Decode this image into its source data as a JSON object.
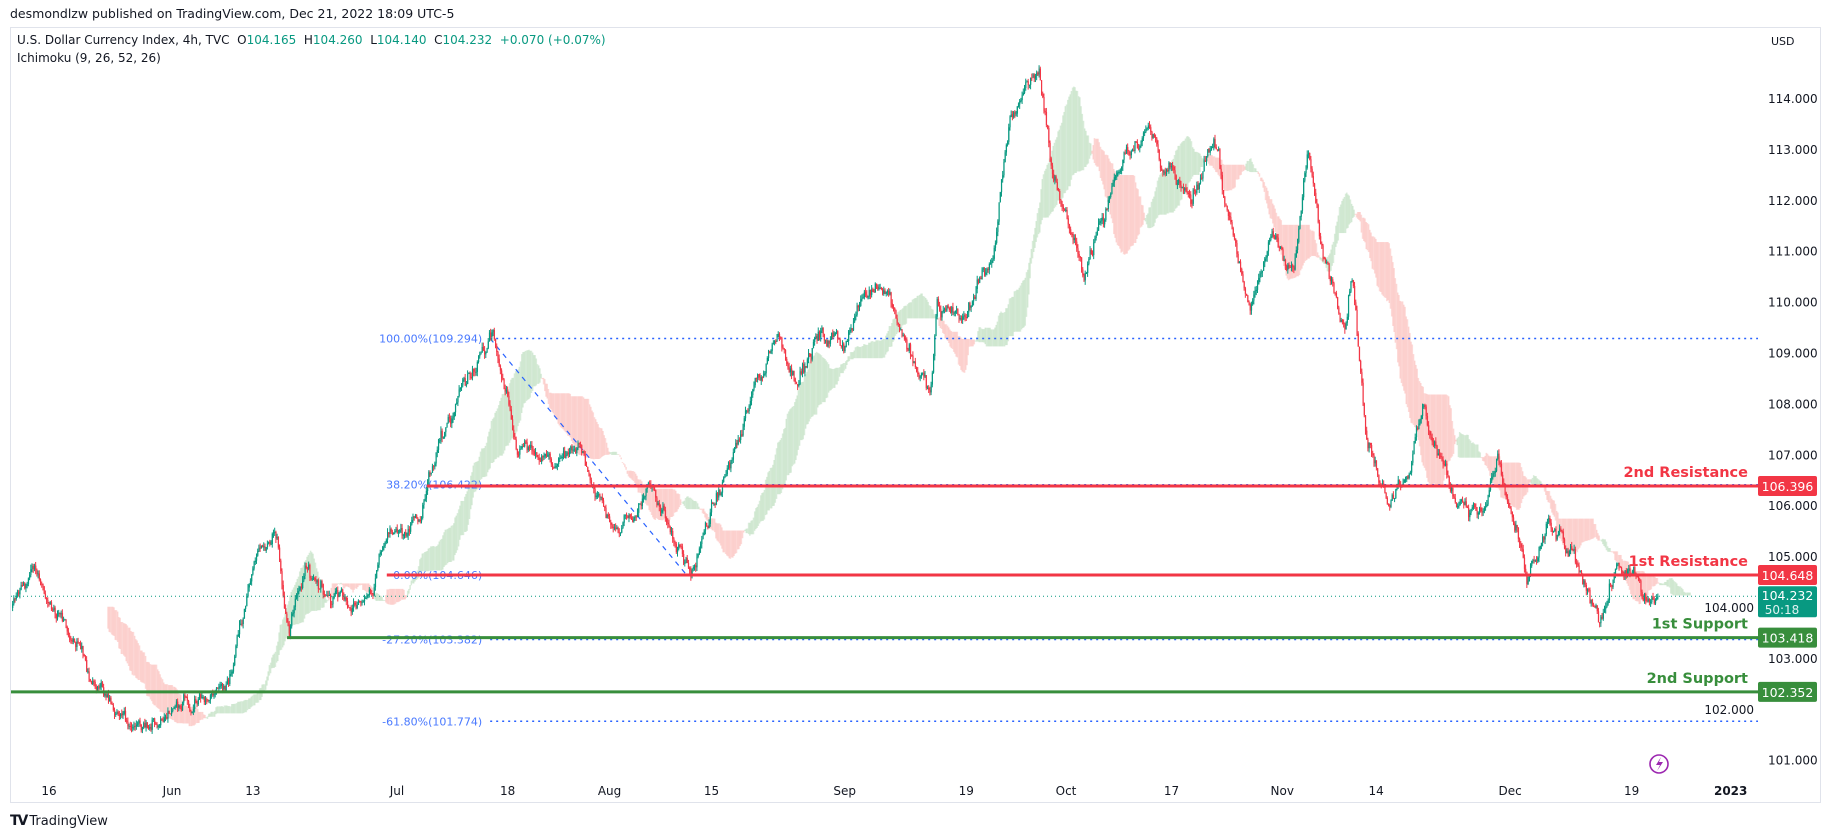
{
  "header": {
    "published": "desmondlzw published on TradingView.com, Dec 21, 2022 18:09 UTC-5"
  },
  "legend": {
    "symbol": "U.S. Dollar Currency Index, 4h, TVC",
    "open": "O104.165",
    "high": "H104.260",
    "low": "L104.140",
    "close": "C104.232",
    "change": "+0.070 (+0.07%)",
    "indicator": "Ichimoku (9, 26, 52, 26)"
  },
  "footer": {
    "logo": "TradingView"
  },
  "colors": {
    "up": "#089981",
    "down": "#f23645",
    "resistance": "#f23645",
    "support": "#388e3c",
    "fib": "#2962ff",
    "cloud_up": "#43a047",
    "cloud_down": "#f44336",
    "alert": "#9c27b0"
  },
  "chart_data": {
    "type": "candlestick",
    "title": "U.S. Dollar Currency Index, 4h, TVC",
    "currency_label": "USD",
    "ylim": [
      100.5,
      115
    ],
    "y_ticks": [
      "101.000",
      "102.000",
      "103.000",
      "104.000",
      "105.000",
      "106.000",
      "107.000",
      "108.000",
      "109.000",
      "110.000",
      "111.000",
      "112.000",
      "113.000",
      "114.000"
    ],
    "x_ticks": [
      {
        "label": "16",
        "day": 0
      },
      {
        "label": "Jun",
        "day": 16.9
      },
      {
        "label": "13",
        "day": 28
      },
      {
        "label": "Jul",
        "day": 47.8
      },
      {
        "label": "18",
        "day": 63
      },
      {
        "label": "Aug",
        "day": 77
      },
      {
        "label": "15",
        "day": 91
      },
      {
        "label": "Sep",
        "day": 109.3
      },
      {
        "label": "19",
        "day": 126
      },
      {
        "label": "Oct",
        "day": 139.7
      },
      {
        "label": "17",
        "day": 154.2
      },
      {
        "label": "Nov",
        "day": 169.4
      },
      {
        "label": "14",
        "day": 182.3
      },
      {
        "label": "Dec",
        "day": 200.7
      },
      {
        "label": "19",
        "day": 217.4
      },
      {
        "label": "2023",
        "day": 231
      }
    ],
    "day_axis_note": "days since May 16, 2022",
    "price_path": [
      [
        -5,
        104.0
      ],
      [
        -2,
        104.8
      ],
      [
        1,
        103.8
      ],
      [
        5,
        102.9
      ],
      [
        9,
        102.0
      ],
      [
        14,
        101.5
      ],
      [
        17,
        102.2
      ],
      [
        21,
        102.05
      ],
      [
        25,
        102.65
      ],
      [
        28,
        104.9
      ],
      [
        31,
        105.6
      ],
      [
        33,
        103.55
      ],
      [
        35,
        104.7
      ],
      [
        43,
        104.0
      ],
      [
        47,
        105.4
      ],
      [
        51,
        105.85
      ],
      [
        53,
        107.0
      ],
      [
        57,
        108.4
      ],
      [
        61,
        109.3
      ],
      [
        64,
        107.2
      ],
      [
        69,
        106.8
      ],
      [
        73,
        107.0
      ],
      [
        78,
        105.4
      ],
      [
        83,
        106.5
      ],
      [
        88,
        104.7
      ],
      [
        93,
        106.5
      ],
      [
        97,
        108.4
      ],
      [
        100,
        109.3
      ],
      [
        103,
        108.6
      ],
      [
        106,
        109.3
      ],
      [
        109,
        109.1
      ],
      [
        112,
        110.2
      ],
      [
        115,
        110.4
      ],
      [
        118,
        109.1
      ],
      [
        121,
        108.1
      ],
      [
        122,
        109.8
      ],
      [
        126,
        109.8
      ],
      [
        130,
        111.1
      ],
      [
        132,
        113.6
      ],
      [
        134,
        114.3
      ],
      [
        136,
        114.6
      ],
      [
        138,
        112.5
      ],
      [
        142,
        110.7
      ],
      [
        145,
        111.8
      ],
      [
        148,
        113.2
      ],
      [
        151,
        113.4
      ],
      [
        154,
        112.5
      ],
      [
        157,
        112.0
      ],
      [
        160,
        113.2
      ],
      [
        162,
        111.8
      ],
      [
        165,
        109.8
      ],
      [
        168,
        111.35
      ],
      [
        171,
        110.7
      ],
      [
        173,
        112.95
      ],
      [
        175,
        110.9
      ],
      [
        178,
        109.75
      ],
      [
        179,
        110.7
      ],
      [
        181,
        107.2
      ],
      [
        183,
        106.5
      ],
      [
        184,
        106.1
      ],
      [
        187,
        106.8
      ],
      [
        189,
        107.9
      ],
      [
        193,
        106.3
      ],
      [
        197,
        105.85
      ],
      [
        199,
        107.0
      ],
      [
        203,
        104.5
      ],
      [
        206,
        105.6
      ],
      [
        209,
        104.9
      ],
      [
        213,
        103.8
      ],
      [
        215,
        104.7
      ],
      [
        218,
        104.5
      ],
      [
        219,
        104.0
      ],
      [
        221,
        104.232
      ]
    ],
    "last_price": {
      "value": 104.232,
      "label": "104.232",
      "countdown": "50:18"
    },
    "levels": [
      {
        "name": "2nd Resistance",
        "value": 106.396,
        "label": "106.396",
        "kind": "resistance",
        "start_day": 51.9
      },
      {
        "name": "1st Resistance",
        "value": 104.648,
        "label": "104.648",
        "kind": "resistance",
        "start_day": 46.4
      },
      {
        "name": "1st Support",
        "value": 103.418,
        "label": "103.418",
        "kind": "support",
        "start_day": 32.7
      },
      {
        "name": "2nd Support",
        "value": 102.352,
        "label": "102.352",
        "kind": "support",
        "start_day": -5.4
      }
    ],
    "fibonacci": {
      "from": {
        "day": 60.6,
        "price": 109.294
      },
      "to": {
        "day": 87.6,
        "price": 104.646
      },
      "levels": [
        {
          "label": "100.00%(109.294)",
          "value": 109.294
        },
        {
          "label": "38.20%(106.422)",
          "value": 106.422
        },
        {
          "label": "0.00%(104.646)",
          "value": 104.646
        },
        {
          "label": "-27.20%(103.382)",
          "value": 103.382
        },
        {
          "label": "-61.80%(101.774)",
          "value": 101.774
        }
      ]
    },
    "ichimoku": {
      "tenkan": 9,
      "kijun": 26,
      "span_b": 52,
      "displacement": 26
    }
  }
}
